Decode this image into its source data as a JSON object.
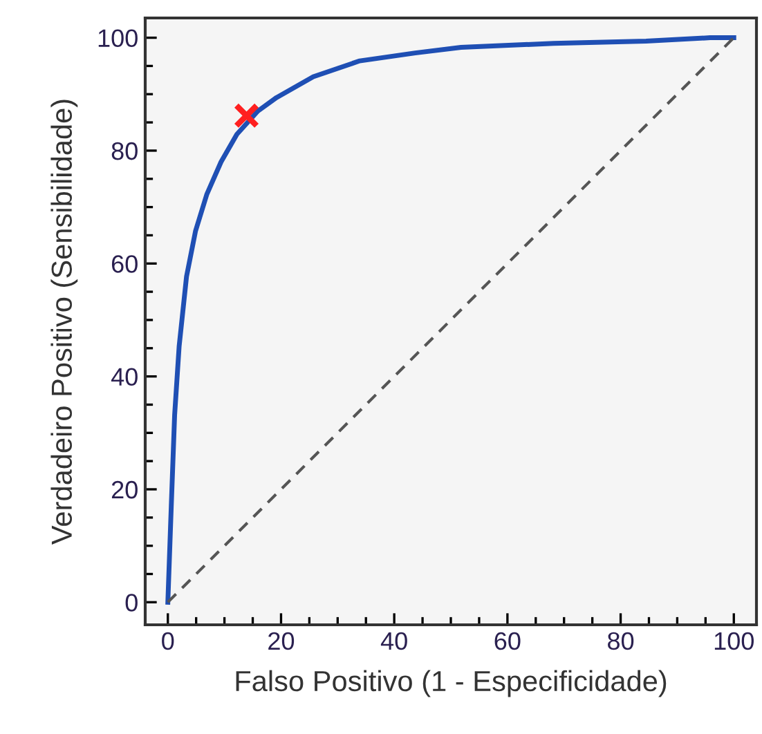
{
  "chart_data": {
    "type": "line",
    "xlabel": "Falso Positivo (1 - Especificidade)",
    "ylabel": "Verdadeiro Positivo (Sensibilidade)",
    "xlim": [
      -4,
      104
    ],
    "ylim": [
      -4,
      103.5
    ],
    "xticks": [
      0,
      20,
      40,
      60,
      80,
      100
    ],
    "yticks": [
      0,
      20,
      40,
      60,
      80,
      100
    ],
    "grid": false,
    "series": [
      {
        "color": "#1f4fb4",
        "line_style": "solid",
        "marker": "none",
        "x": [
          0,
          0.6,
          1.2,
          2.0,
          3.3,
          4.9,
          6.9,
          9.4,
          12.2,
          15.9,
          19.2,
          25.7,
          33.9,
          43.7,
          51.8,
          68.2,
          84.5,
          95.8,
          100
        ],
        "values": [
          0,
          16.9,
          33.2,
          45.4,
          57.7,
          65.8,
          72.3,
          78,
          82.9,
          87,
          89.4,
          93.1,
          95.9,
          97.3,
          98.3,
          99,
          99.4,
          100,
          100
        ]
      },
      {
        "color": "#555555",
        "line_style": "dashed",
        "marker": "none",
        "x": [
          0,
          100
        ],
        "values": [
          0,
          100
        ]
      },
      {
        "type": "scatter",
        "color": "#ff2020",
        "marker": "cross",
        "x": [
          13.9
        ],
        "values": [
          86.2
        ]
      }
    ]
  }
}
